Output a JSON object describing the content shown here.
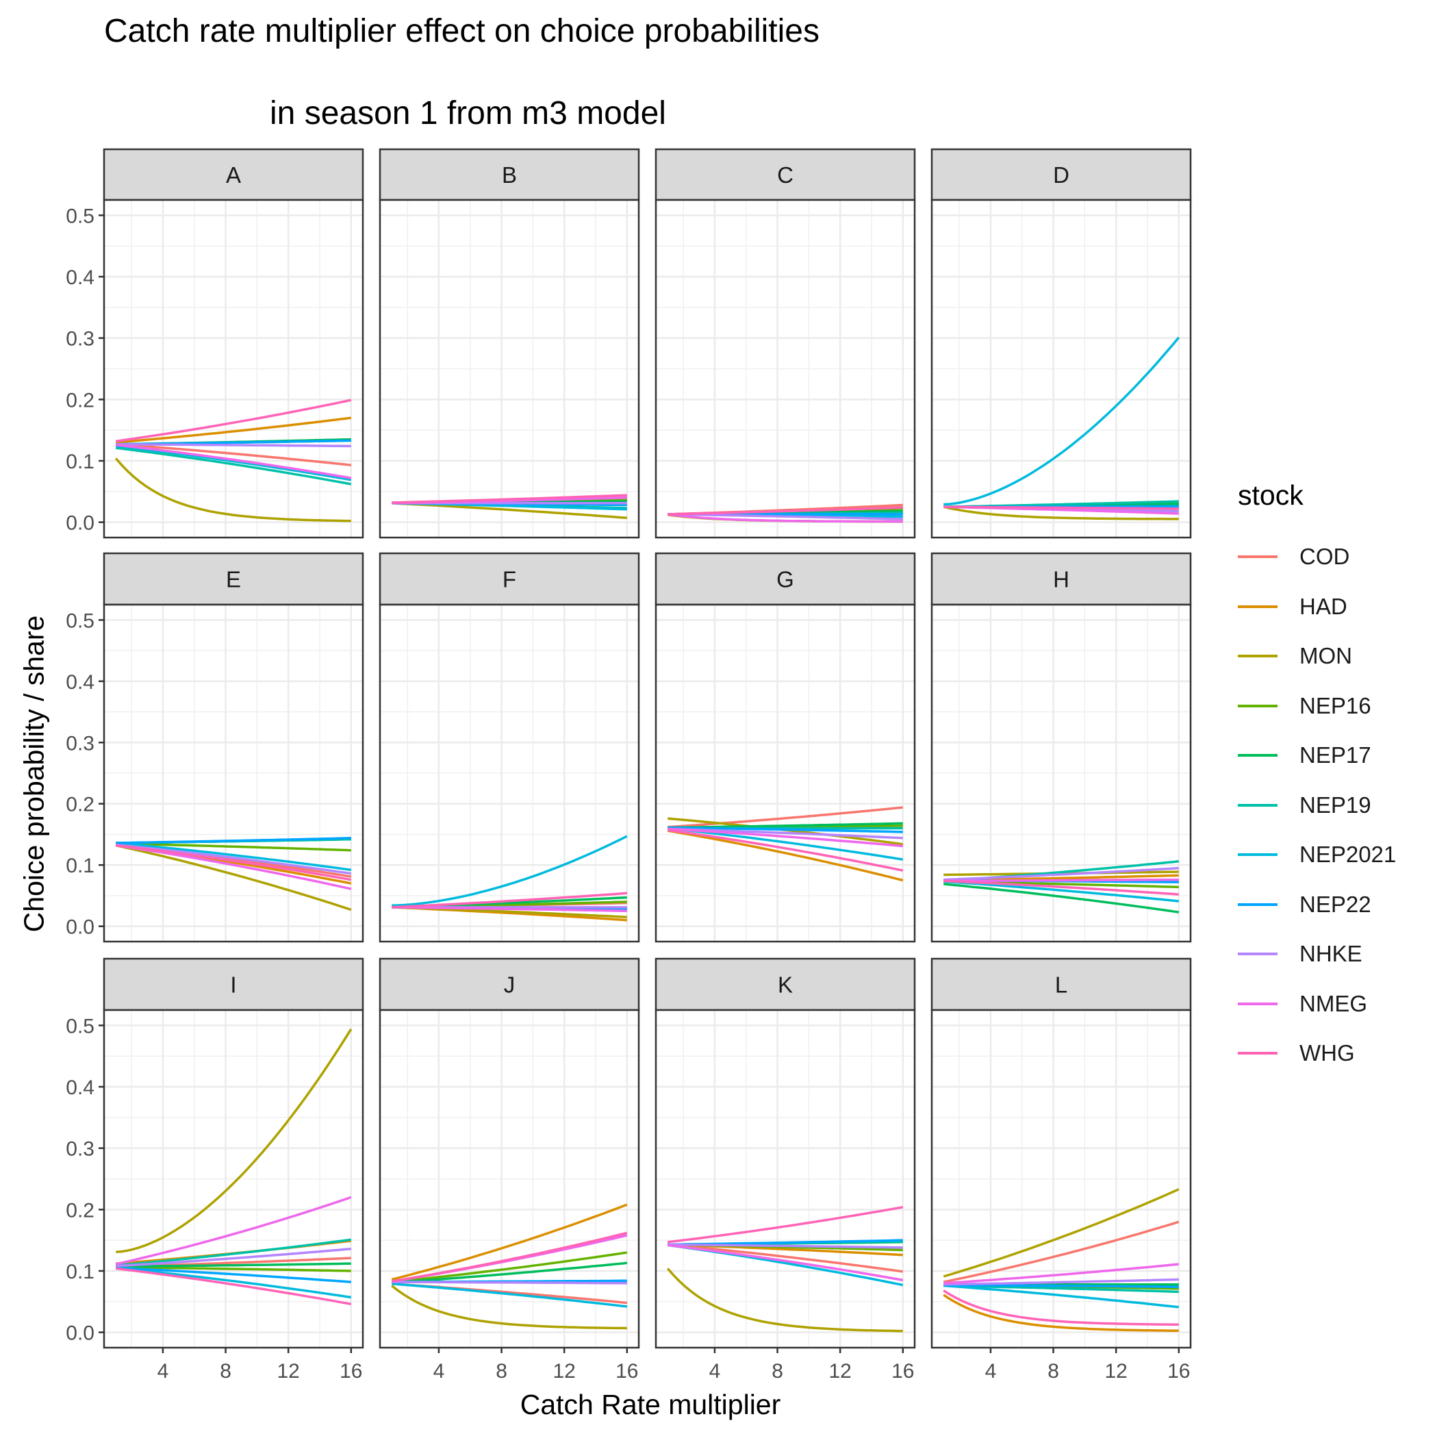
{
  "chart_data": {
    "type": "line",
    "title": "Catch rate multiplier effect on choice probabilities",
    "subtitle": "in season 1 from m3 model",
    "xlabel": "Catch Rate multiplier",
    "ylabel": "Choice probability / share",
    "xlim": [
      0.25,
      16.75
    ],
    "ylim": [
      -0.025,
      0.525
    ],
    "x_ticks": [
      4,
      8,
      12,
      16
    ],
    "y_ticks": [
      0.0,
      0.1,
      0.2,
      0.3,
      0.4,
      0.5
    ],
    "y_tick_labels": [
      "0.0",
      "0.1",
      "0.2",
      "0.3",
      "0.4",
      "0.5"
    ],
    "x_tick_labels": [
      "4",
      "8",
      "12",
      "16"
    ],
    "grid": true,
    "legend_title": "stock",
    "legend_position": "right",
    "stocks": [
      "COD",
      "HAD",
      "MON",
      "NEP16",
      "NEP17",
      "NEP19",
      "NEP2021",
      "NEP22",
      "NHKE",
      "NMEG",
      "WHG"
    ],
    "colors": {
      "COD": "#F8766D",
      "HAD": "#DB8E00",
      "MON": "#AEA200",
      "NEP16": "#64B200",
      "NEP17": "#00BD5C",
      "NEP19": "#00C1A7",
      "NEP2021": "#00BADE",
      "NEP22": "#00A6FF",
      "NHKE": "#B385FF",
      "NMEG": "#EF67EB",
      "WHG": "#FF63B6"
    },
    "x": [
      1,
      16
    ],
    "panels": [
      {
        "label": "A",
        "series": [
          {
            "stock": "COD",
            "values": [
              0.127,
              0.093
            ]
          },
          {
            "stock": "HAD",
            "values": [
              0.13,
              0.17
            ]
          },
          {
            "stock": "MON",
            "values": [
              0.104,
              0.001
            ]
          },
          {
            "stock": "NEP16",
            "values": [
              0.127,
              0.133
            ]
          },
          {
            "stock": "NEP17",
            "values": [
              0.127,
              0.135
            ]
          },
          {
            "stock": "NEP19",
            "values": [
              0.121,
              0.062
            ]
          },
          {
            "stock": "NEP2021",
            "values": [
              0.124,
              0.069
            ]
          },
          {
            "stock": "NEP22",
            "values": [
              0.127,
              0.133
            ]
          },
          {
            "stock": "NHKE",
            "values": [
              0.127,
              0.124
            ]
          },
          {
            "stock": "NMEG",
            "values": [
              0.126,
              0.072
            ]
          },
          {
            "stock": "WHG",
            "values": [
              0.132,
              0.199
            ]
          }
        ]
      },
      {
        "label": "B",
        "series": [
          {
            "stock": "COD",
            "values": [
              0.031,
              0.036
            ]
          },
          {
            "stock": "HAD",
            "values": [
              0.031,
              0.04
            ]
          },
          {
            "stock": "MON",
            "values": [
              0.031,
              0.007
            ]
          },
          {
            "stock": "NEP16",
            "values": [
              0.031,
              0.036
            ]
          },
          {
            "stock": "NEP17",
            "values": [
              0.031,
              0.034
            ]
          },
          {
            "stock": "NEP19",
            "values": [
              0.031,
              0.023
            ]
          },
          {
            "stock": "NEP2021",
            "values": [
              0.031,
              0.021
            ]
          },
          {
            "stock": "NEP22",
            "values": [
              0.031,
              0.028
            ]
          },
          {
            "stock": "NHKE",
            "values": [
              0.031,
              0.031
            ]
          },
          {
            "stock": "NMEG",
            "values": [
              0.031,
              0.04
            ]
          },
          {
            "stock": "WHG",
            "values": [
              0.032,
              0.044
            ]
          }
        ]
      },
      {
        "label": "C",
        "series": [
          {
            "stock": "COD",
            "values": [
              0.013,
              0.028
            ]
          },
          {
            "stock": "HAD",
            "values": [
              0.012,
              0.024
            ]
          },
          {
            "stock": "MON",
            "values": [
              0.012,
              0.001
            ]
          },
          {
            "stock": "NEP16",
            "values": [
              0.013,
              0.022
            ]
          },
          {
            "stock": "NEP17",
            "values": [
              0.013,
              0.018
            ]
          },
          {
            "stock": "NEP19",
            "values": [
              0.013,
              0.015
            ]
          },
          {
            "stock": "NEP2021",
            "values": [
              0.013,
              0.009
            ]
          },
          {
            "stock": "NEP22",
            "values": [
              0.013,
              0.013
            ]
          },
          {
            "stock": "NHKE",
            "values": [
              0.013,
              0.005
            ]
          },
          {
            "stock": "NMEG",
            "values": [
              0.013,
              0.001
            ]
          },
          {
            "stock": "WHG",
            "values": [
              0.013,
              0.024
            ]
          }
        ]
      },
      {
        "label": "D",
        "series": [
          {
            "stock": "COD",
            "values": [
              0.025,
              0.022
            ]
          },
          {
            "stock": "HAD",
            "values": [
              0.025,
              0.025
            ]
          },
          {
            "stock": "MON",
            "values": [
              0.025,
              0.005
            ]
          },
          {
            "stock": "NEP16",
            "values": [
              0.025,
              0.03
            ]
          },
          {
            "stock": "NEP17",
            "values": [
              0.025,
              0.03
            ]
          },
          {
            "stock": "NEP19",
            "values": [
              0.025,
              0.034
            ]
          },
          {
            "stock": "NEP2021",
            "values": [
              0.029,
              0.301
            ]
          },
          {
            "stock": "NEP22",
            "values": [
              0.025,
              0.026
            ]
          },
          {
            "stock": "NHKE",
            "values": [
              0.025,
              0.018
            ]
          },
          {
            "stock": "NMEG",
            "values": [
              0.025,
              0.014
            ]
          },
          {
            "stock": "WHG",
            "values": [
              0.025,
              0.022
            ]
          }
        ]
      },
      {
        "label": "E",
        "series": [
          {
            "stock": "COD",
            "values": [
              0.133,
              0.081
            ]
          },
          {
            "stock": "HAD",
            "values": [
              0.132,
              0.07
            ]
          },
          {
            "stock": "MON",
            "values": [
              0.132,
              0.027
            ]
          },
          {
            "stock": "NEP16",
            "values": [
              0.135,
              0.124
            ]
          },
          {
            "stock": "NEP17",
            "values": [
              0.136,
              0.142
            ]
          },
          {
            "stock": "NEP19",
            "values": [
              0.136,
              0.142
            ]
          },
          {
            "stock": "NEP2021",
            "values": [
              0.136,
              0.092
            ]
          },
          {
            "stock": "NEP22",
            "values": [
              0.136,
              0.144
            ]
          },
          {
            "stock": "NHKE",
            "values": [
              0.133,
              0.086
            ]
          },
          {
            "stock": "NMEG",
            "values": [
              0.132,
              0.061
            ]
          },
          {
            "stock": "WHG",
            "values": [
              0.132,
              0.076
            ]
          }
        ]
      },
      {
        "label": "F",
        "series": [
          {
            "stock": "COD",
            "values": [
              0.031,
              0.038
            ]
          },
          {
            "stock": "HAD",
            "values": [
              0.031,
              0.01
            ]
          },
          {
            "stock": "MON",
            "values": [
              0.031,
              0.015
            ]
          },
          {
            "stock": "NEP16",
            "values": [
              0.031,
              0.04
            ]
          },
          {
            "stock": "NEP17",
            "values": [
              0.031,
              0.047
            ]
          },
          {
            "stock": "NEP19",
            "values": [
              0.031,
              0.03
            ]
          },
          {
            "stock": "NEP2021",
            "values": [
              0.034,
              0.147
            ]
          },
          {
            "stock": "NEP22",
            "values": [
              0.031,
              0.029
            ]
          },
          {
            "stock": "NHKE",
            "values": [
              0.031,
              0.031
            ]
          },
          {
            "stock": "NMEG",
            "values": [
              0.031,
              0.025
            ]
          },
          {
            "stock": "WHG",
            "values": [
              0.031,
              0.054
            ]
          }
        ]
      },
      {
        "label": "G",
        "series": [
          {
            "stock": "COD",
            "values": [
              0.162,
              0.194
            ]
          },
          {
            "stock": "HAD",
            "values": [
              0.156,
              0.075
            ]
          },
          {
            "stock": "MON",
            "values": [
              0.176,
              0.134
            ]
          },
          {
            "stock": "NEP16",
            "values": [
              0.16,
              0.164
            ]
          },
          {
            "stock": "NEP17",
            "values": [
              0.161,
              0.168
            ]
          },
          {
            "stock": "NEP19",
            "values": [
              0.16,
              0.16
            ]
          },
          {
            "stock": "NEP2021",
            "values": [
              0.16,
              0.109
            ]
          },
          {
            "stock": "NEP22",
            "values": [
              0.161,
              0.154
            ]
          },
          {
            "stock": "NHKE",
            "values": [
              0.159,
              0.144
            ]
          },
          {
            "stock": "NMEG",
            "values": [
              0.159,
              0.131
            ]
          },
          {
            "stock": "WHG",
            "values": [
              0.157,
              0.091
            ]
          }
        ]
      },
      {
        "label": "H",
        "series": [
          {
            "stock": "COD",
            "values": [
              0.075,
              0.076
            ]
          },
          {
            "stock": "HAD",
            "values": [
              0.075,
              0.083
            ]
          },
          {
            "stock": "MON",
            "values": [
              0.084,
              0.089
            ]
          },
          {
            "stock": "NEP16",
            "values": [
              0.073,
              0.064
            ]
          },
          {
            "stock": "NEP17",
            "values": [
              0.069,
              0.023
            ]
          },
          {
            "stock": "NEP19",
            "values": [
              0.074,
              0.106
            ]
          },
          {
            "stock": "NEP2021",
            "values": [
              0.073,
              0.041
            ]
          },
          {
            "stock": "NEP22",
            "values": [
              0.075,
              0.072
            ]
          },
          {
            "stock": "NHKE",
            "values": [
              0.076,
              0.095
            ]
          },
          {
            "stock": "NMEG",
            "values": [
              0.074,
              0.076
            ]
          },
          {
            "stock": "WHG",
            "values": [
              0.074,
              0.052
            ]
          }
        ]
      },
      {
        "label": "I",
        "series": [
          {
            "stock": "COD",
            "values": [
              0.107,
              0.121
            ]
          },
          {
            "stock": "HAD",
            "values": [
              0.112,
              0.149
            ]
          },
          {
            "stock": "MON",
            "values": [
              0.131,
              0.494
            ]
          },
          {
            "stock": "NEP16",
            "values": [
              0.106,
              0.1
            ]
          },
          {
            "stock": "NEP17",
            "values": [
              0.107,
              0.112
            ]
          },
          {
            "stock": "NEP19",
            "values": [
              0.109,
              0.151
            ]
          },
          {
            "stock": "NEP2021",
            "values": [
              0.105,
              0.057
            ]
          },
          {
            "stock": "NEP22",
            "values": [
              0.105,
              0.082
            ]
          },
          {
            "stock": "NHKE",
            "values": [
              0.108,
              0.136
            ]
          },
          {
            "stock": "NMEG",
            "values": [
              0.111,
              0.22
            ]
          },
          {
            "stock": "WHG",
            "values": [
              0.104,
              0.046
            ]
          }
        ]
      },
      {
        "label": "J",
        "series": [
          {
            "stock": "COD",
            "values": [
              0.079,
              0.048
            ]
          },
          {
            "stock": "HAD",
            "values": [
              0.086,
              0.208
            ]
          },
          {
            "stock": "MON",
            "values": [
              0.076,
              0.006
            ]
          },
          {
            "stock": "NEP16",
            "values": [
              0.082,
              0.13
            ]
          },
          {
            "stock": "NEP17",
            "values": [
              0.081,
              0.113
            ]
          },
          {
            "stock": "NEP19",
            "values": [
              0.082,
              0.081
            ]
          },
          {
            "stock": "NEP2021",
            "values": [
              0.079,
              0.042
            ]
          },
          {
            "stock": "NEP22",
            "values": [
              0.082,
              0.084
            ]
          },
          {
            "stock": "NHKE",
            "values": [
              0.082,
              0.08
            ]
          },
          {
            "stock": "NMEG",
            "values": [
              0.083,
              0.158
            ]
          },
          {
            "stock": "WHG",
            "values": [
              0.083,
              0.162
            ]
          }
        ]
      },
      {
        "label": "K",
        "series": [
          {
            "stock": "COD",
            "values": [
              0.143,
              0.099
            ]
          },
          {
            "stock": "HAD",
            "values": [
              0.143,
              0.126
            ]
          },
          {
            "stock": "MON",
            "values": [
              0.104,
              0.001
            ]
          },
          {
            "stock": "NEP16",
            "values": [
              0.143,
              0.134
            ]
          },
          {
            "stock": "NEP17",
            "values": [
              0.143,
              0.147
            ]
          },
          {
            "stock": "NEP19",
            "values": [
              0.143,
              0.148
            ]
          },
          {
            "stock": "NEP2021",
            "values": [
              0.142,
              0.077
            ]
          },
          {
            "stock": "NEP22",
            "values": [
              0.143,
              0.15
            ]
          },
          {
            "stock": "NHKE",
            "values": [
              0.143,
              0.138
            ]
          },
          {
            "stock": "NMEG",
            "values": [
              0.142,
              0.085
            ]
          },
          {
            "stock": "WHG",
            "values": [
              0.147,
              0.204
            ]
          }
        ]
      },
      {
        "label": "L",
        "series": [
          {
            "stock": "COD",
            "values": [
              0.082,
              0.18
            ]
          },
          {
            "stock": "HAD",
            "values": [
              0.061,
              0.002
            ]
          },
          {
            "stock": "MON",
            "values": [
              0.091,
              0.233
            ]
          },
          {
            "stock": "NEP16",
            "values": [
              0.078,
              0.071
            ]
          },
          {
            "stock": "NEP17",
            "values": [
              0.078,
              0.078
            ]
          },
          {
            "stock": "NEP19",
            "values": [
              0.076,
              0.066
            ]
          },
          {
            "stock": "NEP2021",
            "values": [
              0.076,
              0.041
            ]
          },
          {
            "stock": "NEP22",
            "values": [
              0.077,
              0.074
            ]
          },
          {
            "stock": "NHKE",
            "values": [
              0.078,
              0.086
            ]
          },
          {
            "stock": "NMEG",
            "values": [
              0.08,
              0.111
            ]
          },
          {
            "stock": "WHG",
            "values": [
              0.068,
              0.012
            ]
          }
        ]
      }
    ]
  }
}
